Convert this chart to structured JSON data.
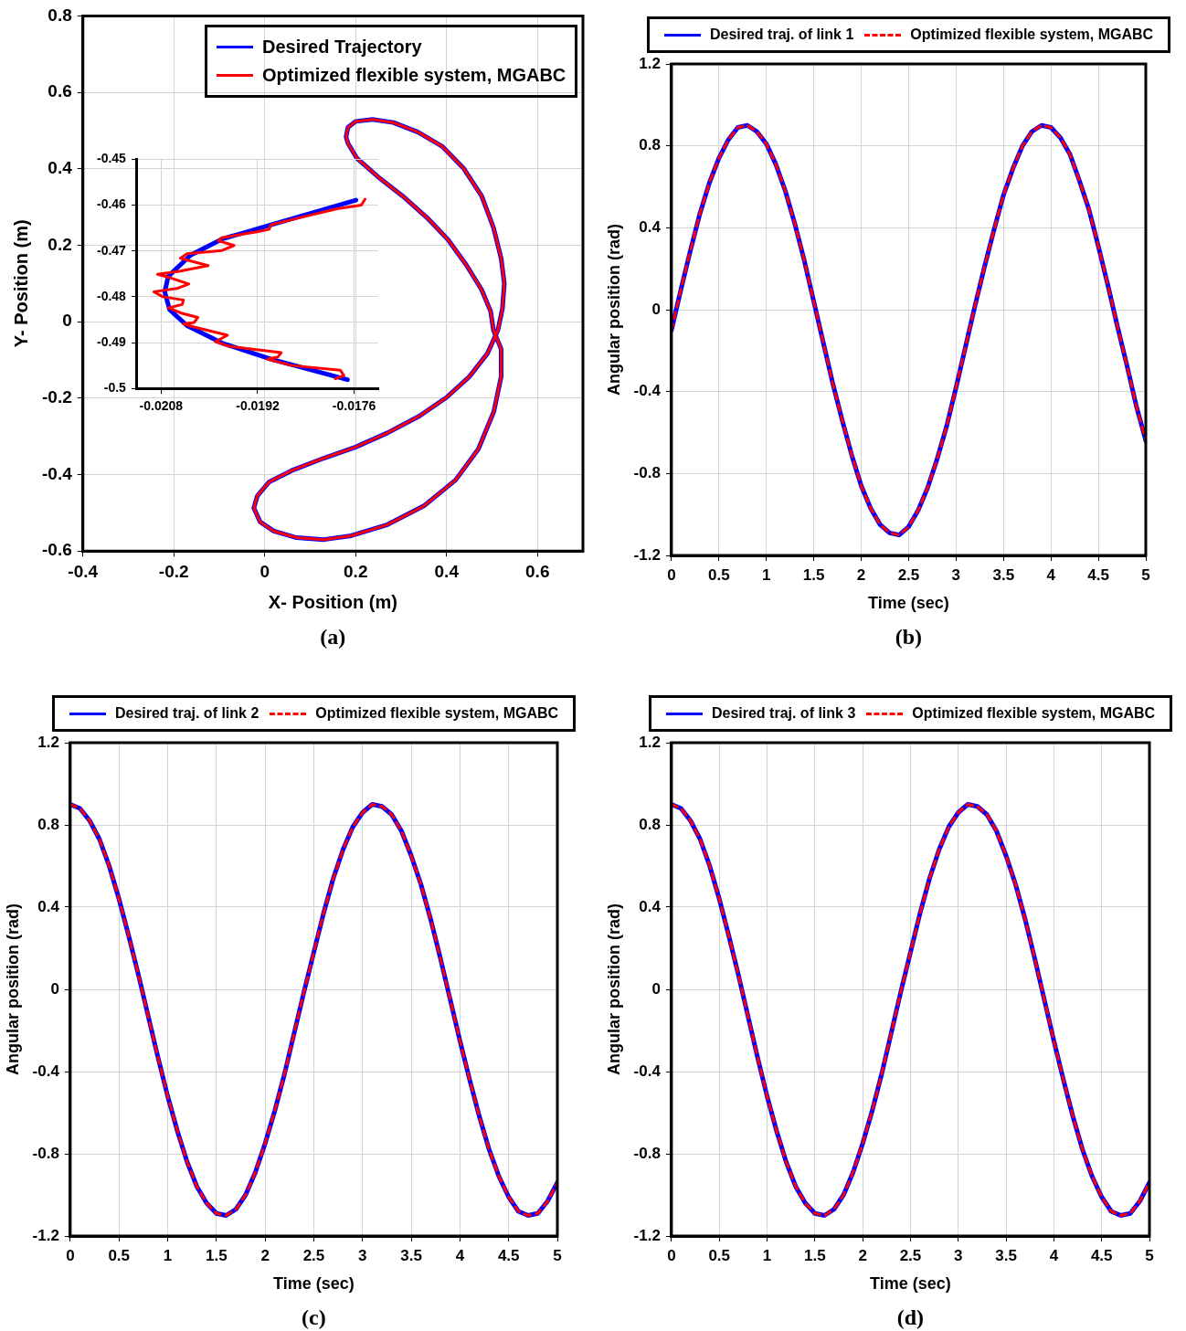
{
  "chart_data": [
    {
      "type": "line",
      "xlabel": "X- Position (m)",
      "ylabel": "Y- Position (m)",
      "xlim": [
        -0.4,
        0.7
      ],
      "ylim": [
        -0.6,
        0.8
      ],
      "xticks": [
        -0.4,
        -0.2,
        0,
        0.2,
        0.4,
        0.6
      ],
      "yticks": [
        -0.6,
        -0.4,
        -0.2,
        0,
        0.2,
        0.4,
        0.6,
        0.8
      ],
      "grid": true,
      "legend": "top right",
      "annotations": [
        "(a)"
      ],
      "series": [
        {
          "name": "Desired Trajectory",
          "color": "#0000ff",
          "x": [
            0.179,
            0.183,
            0.2,
            0.237,
            0.283,
            0.337,
            0.39,
            0.437,
            0.477,
            0.503,
            0.52,
            0.527,
            0.523,
            0.513,
            0.49,
            0.45,
            0.4,
            0.34,
            0.27,
            0.2,
            0.13,
            0.06,
            0.01,
            -0.016,
            -0.024,
            -0.01,
            0.02,
            0.07,
            0.13,
            0.19,
            0.27,
            0.35,
            0.42,
            0.47,
            0.504,
            0.52,
            0.52,
            0.503,
            0.497,
            0.477,
            0.443,
            0.403,
            0.357,
            0.303,
            0.25,
            0.203,
            0.183,
            0.18
          ],
          "values": [
            0.484,
            0.508,
            0.524,
            0.529,
            0.521,
            0.496,
            0.459,
            0.402,
            0.329,
            0.247,
            0.166,
            0.1,
            0.035,
            -0.022,
            -0.083,
            -0.144,
            -0.198,
            -0.247,
            -0.291,
            -0.328,
            -0.357,
            -0.389,
            -0.419,
            -0.455,
            -0.487,
            -0.524,
            -0.548,
            -0.565,
            -0.57,
            -0.56,
            -0.531,
            -0.482,
            -0.414,
            -0.333,
            -0.235,
            -0.144,
            -0.071,
            -0.022,
            0.027,
            0.084,
            0.149,
            0.215,
            0.272,
            0.329,
            0.378,
            0.427,
            0.467,
            0.479
          ]
        },
        {
          "name": "Optimized flexible system, MGABC",
          "color": "#ff0000",
          "x": [
            0.179,
            0.183,
            0.2,
            0.237,
            0.283,
            0.337,
            0.39,
            0.437,
            0.477,
            0.503,
            0.52,
            0.527,
            0.523,
            0.513,
            0.49,
            0.45,
            0.4,
            0.34,
            0.27,
            0.2,
            0.13,
            0.06,
            0.01,
            -0.016,
            -0.024,
            -0.01,
            0.02,
            0.07,
            0.13,
            0.19,
            0.27,
            0.35,
            0.42,
            0.47,
            0.504,
            0.52,
            0.52,
            0.503,
            0.497,
            0.477,
            0.443,
            0.403,
            0.357,
            0.303,
            0.25,
            0.203,
            0.183,
            0.18
          ],
          "values": [
            0.484,
            0.508,
            0.524,
            0.529,
            0.521,
            0.496,
            0.459,
            0.402,
            0.329,
            0.247,
            0.166,
            0.1,
            0.035,
            -0.022,
            -0.083,
            -0.144,
            -0.198,
            -0.247,
            -0.291,
            -0.328,
            -0.357,
            -0.389,
            -0.419,
            -0.455,
            -0.487,
            -0.524,
            -0.548,
            -0.565,
            -0.57,
            -0.56,
            -0.531,
            -0.482,
            -0.414,
            -0.333,
            -0.235,
            -0.144,
            -0.071,
            -0.022,
            0.027,
            0.084,
            0.149,
            0.215,
            0.272,
            0.329,
            0.378,
            0.427,
            0.467,
            0.479
          ]
        }
      ]
    },
    {
      "type": "line",
      "xlim": [
        -0.0212,
        -0.0172
      ],
      "ylim": [
        -0.5,
        -0.45
      ],
      "xticks": [
        -0.0208,
        -0.0192,
        -0.0176
      ],
      "yticks": [
        -0.5,
        -0.49,
        -0.48,
        -0.47,
        -0.46,
        -0.45
      ],
      "grid": true,
      "series": [
        {
          "color": "#0000ff",
          "x": [
            -0.01757,
            -0.01817,
            -0.01898,
            -0.01979,
            -0.02031,
            -0.02068,
            -0.02074,
            -0.02066,
            -0.02037,
            -0.01979,
            -0.01898,
            -0.01771
          ],
          "values": [
            -0.4589,
            -0.4612,
            -0.4643,
            -0.4674,
            -0.4709,
            -0.4755,
            -0.4789,
            -0.4828,
            -0.4863,
            -0.4901,
            -0.4936,
            -0.4981
          ]
        },
        {
          "color": "#ff0000",
          "x": [
            -0.01742,
            -0.01748,
            -0.01788,
            -0.01846,
            -0.01898,
            -0.01901,
            -0.01921,
            -0.01979,
            -0.01985,
            -0.01959,
            -0.01979,
            -0.02037,
            -0.02048,
            -0.02002,
            -0.02048,
            -0.02086,
            -0.02066,
            -0.02034,
            -0.02054,
            -0.02092,
            -0.02077,
            -0.02043,
            -0.02045,
            -0.02068,
            -0.02048,
            -0.02019,
            -0.02025,
            -0.02043,
            -0.02025,
            -0.01982,
            -0.0197,
            -0.0199,
            -0.01967,
            -0.01881,
            -0.01887,
            -0.01904,
            -0.01863,
            -0.01783,
            -0.01777,
            -0.01791
          ],
          "values": [
            -0.4587,
            -0.46,
            -0.4608,
            -0.4626,
            -0.4643,
            -0.4653,
            -0.4658,
            -0.4671,
            -0.4678,
            -0.4688,
            -0.4699,
            -0.4706,
            -0.4716,
            -0.4732,
            -0.4744,
            -0.4751,
            -0.4758,
            -0.4772,
            -0.4782,
            -0.4789,
            -0.48,
            -0.4807,
            -0.4817,
            -0.4824,
            -0.4835,
            -0.4845,
            -0.4856,
            -0.4859,
            -0.4866,
            -0.488,
            -0.4884,
            -0.4898,
            -0.4908,
            -0.4922,
            -0.4932,
            -0.4936,
            -0.495,
            -0.496,
            -0.4972,
            -0.4979
          ]
        }
      ]
    },
    {
      "type": "line",
      "xlabel": "Time (sec)",
      "ylabel": "Angular position (rad)",
      "xlim": [
        0,
        5
      ],
      "ylim": [
        -1.2,
        1.2
      ],
      "xticks": [
        0,
        0.5,
        1,
        1.5,
        2,
        2.5,
        3,
        3.5,
        4,
        4.5,
        5
      ],
      "yticks": [
        -1.2,
        -0.8,
        -0.4,
        0,
        0.4,
        0.8,
        1.2
      ],
      "grid": true,
      "legend": "top",
      "annotations": [
        "(b)"
      ],
      "x": [
        0,
        0.1,
        0.2,
        0.3,
        0.4,
        0.5,
        0.6,
        0.7,
        0.8,
        0.9,
        1,
        1.1,
        1.2,
        1.3,
        1.4,
        1.5,
        1.6,
        1.7,
        1.8,
        1.9,
        2,
        2.1,
        2.2,
        2.3,
        2.4,
        2.5,
        2.6,
        2.7,
        2.8,
        2.9,
        3,
        3.1,
        3.2,
        3.3,
        3.4,
        3.5,
        3.6,
        3.7,
        3.8,
        3.9,
        4,
        4.1,
        4.2,
        4.3,
        4.4,
        4.5,
        4.6,
        4.7,
        4.8,
        4.9,
        5
      ],
      "series": [
        {
          "name": "Desired traj. of link 1",
          "color": "#0000ff",
          "line_style": "solid",
          "values": [
            -0.1,
            0.1,
            0.29,
            0.47,
            0.62,
            0.74,
            0.83,
            0.89,
            0.9,
            0.87,
            0.81,
            0.71,
            0.58,
            0.42,
            0.24,
            0.04,
            -0.16,
            -0.36,
            -0.54,
            -0.71,
            -0.86,
            -0.97,
            -1.05,
            -1.09,
            -1.1,
            -1.06,
            -0.98,
            -0.87,
            -0.73,
            -0.57,
            -0.38,
            -0.18,
            0.02,
            0.21,
            0.39,
            0.56,
            0.69,
            0.8,
            0.87,
            0.9,
            0.89,
            0.84,
            0.76,
            0.63,
            0.49,
            0.31,
            0.12,
            -0.08,
            -0.27,
            -0.47,
            -0.64
          ]
        },
        {
          "name": "Optimized flexible system, MGABC",
          "color": "#ff0000",
          "line_style": "dashed",
          "values": [
            -0.1,
            0.1,
            0.29,
            0.47,
            0.62,
            0.74,
            0.83,
            0.89,
            0.9,
            0.87,
            0.81,
            0.71,
            0.58,
            0.42,
            0.24,
            0.04,
            -0.16,
            -0.36,
            -0.54,
            -0.71,
            -0.86,
            -0.97,
            -1.05,
            -1.09,
            -1.1,
            -1.06,
            -0.98,
            -0.87,
            -0.73,
            -0.57,
            -0.38,
            -0.18,
            0.02,
            0.21,
            0.39,
            0.56,
            0.69,
            0.8,
            0.87,
            0.9,
            0.89,
            0.84,
            0.76,
            0.63,
            0.49,
            0.31,
            0.12,
            -0.08,
            -0.27,
            -0.47,
            -0.64
          ]
        }
      ]
    },
    {
      "type": "line",
      "xlabel": "Time (sec)",
      "ylabel": "Angular position (rad)",
      "xlim": [
        0,
        5
      ],
      "ylim": [
        -1.2,
        1.2
      ],
      "xticks": [
        0,
        0.5,
        1,
        1.5,
        2,
        2.5,
        3,
        3.5,
        4,
        4.5,
        5
      ],
      "yticks": [
        -1.2,
        -0.8,
        -0.4,
        0,
        0.4,
        0.8,
        1.2
      ],
      "grid": true,
      "legend": "top",
      "annotations": [
        "(c)"
      ],
      "x": [
        0,
        0.1,
        0.2,
        0.3,
        0.4,
        0.5,
        0.6,
        0.7,
        0.8,
        0.9,
        1,
        1.1,
        1.2,
        1.3,
        1.4,
        1.5,
        1.6,
        1.7,
        1.8,
        1.9,
        2,
        2.1,
        2.2,
        2.3,
        2.4,
        2.5,
        2.6,
        2.7,
        2.8,
        2.9,
        3,
        3.1,
        3.2,
        3.3,
        3.4,
        3.5,
        3.6,
        3.7,
        3.8,
        3.9,
        4,
        4.1,
        4.2,
        4.3,
        4.4,
        4.5,
        4.6,
        4.7,
        4.8,
        4.9,
        5
      ],
      "series": [
        {
          "name": "Desired traj. of link 2",
          "color": "#0000ff",
          "line_style": "solid",
          "values": [
            0.9,
            0.88,
            0.82,
            0.73,
            0.6,
            0.44,
            0.26,
            0.07,
            -0.13,
            -0.33,
            -0.52,
            -0.69,
            -0.84,
            -0.96,
            -1.04,
            -1.09,
            -1.1,
            -1.07,
            -1.0,
            -0.89,
            -0.75,
            -0.59,
            -0.41,
            -0.21,
            -0.01,
            0.18,
            0.37,
            0.54,
            0.68,
            0.79,
            0.86,
            0.9,
            0.89,
            0.85,
            0.77,
            0.65,
            0.51,
            0.34,
            0.15,
            -0.05,
            -0.25,
            -0.44,
            -0.62,
            -0.78,
            -0.91,
            -1.01,
            -1.08,
            -1.1,
            -1.09,
            -1.03,
            -0.94
          ]
        },
        {
          "name": "Optimized flexible system, MGABC",
          "color": "#ff0000",
          "line_style": "dashed",
          "values": [
            0.9,
            0.88,
            0.82,
            0.73,
            0.6,
            0.44,
            0.26,
            0.07,
            -0.13,
            -0.33,
            -0.52,
            -0.69,
            -0.84,
            -0.96,
            -1.04,
            -1.09,
            -1.1,
            -1.07,
            -1.0,
            -0.89,
            -0.75,
            -0.59,
            -0.41,
            -0.21,
            -0.01,
            0.18,
            0.37,
            0.54,
            0.68,
            0.79,
            0.86,
            0.9,
            0.89,
            0.85,
            0.77,
            0.65,
            0.51,
            0.34,
            0.15,
            -0.05,
            -0.25,
            -0.44,
            -0.62,
            -0.78,
            -0.91,
            -1.01,
            -1.08,
            -1.1,
            -1.09,
            -1.03,
            -0.94
          ]
        }
      ]
    },
    {
      "type": "line",
      "xlabel": "Time (sec)",
      "ylabel": "Angular position (rad)",
      "xlim": [
        0,
        5
      ],
      "ylim": [
        -1.2,
        1.2
      ],
      "xticks": [
        0,
        0.5,
        1,
        1.5,
        2,
        2.5,
        3,
        3.5,
        4,
        4.5,
        5
      ],
      "yticks": [
        -1.2,
        -0.8,
        -0.4,
        0,
        0.4,
        0.8,
        1.2
      ],
      "grid": true,
      "legend": "top",
      "annotations": [
        "(d)"
      ],
      "x": [
        0,
        0.1,
        0.2,
        0.3,
        0.4,
        0.5,
        0.6,
        0.7,
        0.8,
        0.9,
        1,
        1.1,
        1.2,
        1.3,
        1.4,
        1.5,
        1.6,
        1.7,
        1.8,
        1.9,
        2,
        2.1,
        2.2,
        2.3,
        2.4,
        2.5,
        2.6,
        2.7,
        2.8,
        2.9,
        3,
        3.1,
        3.2,
        3.3,
        3.4,
        3.5,
        3.6,
        3.7,
        3.8,
        3.9,
        4,
        4.1,
        4.2,
        4.3,
        4.4,
        4.5,
        4.6,
        4.7,
        4.8,
        4.9,
        5
      ],
      "series": [
        {
          "name": "Desired traj. of link 3",
          "color": "#0000ff",
          "line_style": "solid",
          "values": [
            0.9,
            0.88,
            0.82,
            0.73,
            0.6,
            0.44,
            0.26,
            0.07,
            -0.13,
            -0.33,
            -0.52,
            -0.69,
            -0.84,
            -0.96,
            -1.04,
            -1.09,
            -1.1,
            -1.07,
            -1.0,
            -0.89,
            -0.75,
            -0.59,
            -0.41,
            -0.21,
            -0.01,
            0.18,
            0.37,
            0.54,
            0.68,
            0.79,
            0.86,
            0.9,
            0.89,
            0.85,
            0.77,
            0.65,
            0.51,
            0.34,
            0.15,
            -0.05,
            -0.25,
            -0.44,
            -0.62,
            -0.78,
            -0.91,
            -1.01,
            -1.08,
            -1.1,
            -1.09,
            -1.03,
            -0.94
          ]
        },
        {
          "name": "Optimized flexible system, MGABC",
          "color": "#ff0000",
          "line_style": "dashed",
          "values": [
            0.9,
            0.88,
            0.82,
            0.73,
            0.6,
            0.44,
            0.26,
            0.07,
            -0.13,
            -0.33,
            -0.52,
            -0.69,
            -0.84,
            -0.96,
            -1.04,
            -1.09,
            -1.1,
            -1.07,
            -1.0,
            -0.89,
            -0.75,
            -0.59,
            -0.41,
            -0.21,
            -0.01,
            0.18,
            0.37,
            0.54,
            0.68,
            0.79,
            0.86,
            0.9,
            0.89,
            0.85,
            0.77,
            0.65,
            0.51,
            0.34,
            0.15,
            -0.05,
            -0.25,
            -0.44,
            -0.62,
            -0.78,
            -0.91,
            -1.01,
            -1.08,
            -1.1,
            -1.09,
            -1.03,
            -0.94
          ]
        }
      ]
    }
  ]
}
